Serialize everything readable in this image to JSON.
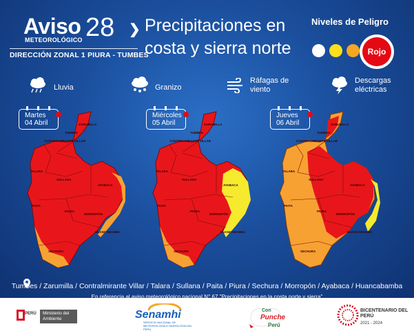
{
  "header": {
    "aviso_word": "Aviso",
    "aviso_number": "28",
    "aviso_sub": "METEOROLÓGICO",
    "zona": "DIRECCIÓN ZONAL 1 PIURA - TUMBES",
    "title_line1": "Precipitaciones en",
    "title_line2": "costa y sierra norte"
  },
  "niveles": {
    "title": "Niveles de Peligro",
    "active_level": "Rojo",
    "colors": [
      "#ffffff",
      "#ffe01b",
      "#f5a623",
      "#e50914"
    ]
  },
  "legend": [
    {
      "icon": "rain-cloud-icon",
      "label": "Lluvia"
    },
    {
      "icon": "hail-cloud-icon",
      "label": "Granizo"
    },
    {
      "icon": "wind-icon",
      "label_line1": "Ráfagas de",
      "label_line2": "viento"
    },
    {
      "icon": "lightning-cloud-icon",
      "label_line1": "Descargas",
      "label_line2": "eléctricas"
    }
  ],
  "days": [
    {
      "weekday": "Martes",
      "date": "04 Abril"
    },
    {
      "weekday": "Miércoles",
      "date": "05 Abril"
    },
    {
      "weekday": "Jueves",
      "date": "06 Abril"
    }
  ],
  "map_labels": {
    "zarumilla": "ZARUMILLA",
    "tumbes": "TUMBES",
    "contralmirante_villar": "CONTRALMIRANTE VILLAR",
    "talara": "TALARA",
    "sullana": "SULLANA",
    "ayabaca": "AYABACA",
    "paita": "PAITA",
    "piura": "PIURA",
    "morropon": "MORROPÓN",
    "huancabamba": "HUANCABAMBA",
    "sechura": "SECHURA"
  },
  "colors": {
    "red": "#e8161b",
    "orange": "#f7a133",
    "yellow": "#f5ea2e"
  },
  "places_line": "Tumbes / Zarumilla / Contralmirante Villar / Talara / Sullana / Paita / Piura / Sechura  / Morropón / Ayabaca / Huancabamba",
  "reference_line": "En referencia al aviso meteorológico nacional N° 67 \"Precipitaciones en la costa norte y sierra\"",
  "footer": {
    "peru_label": "PERÚ",
    "ministerio_label": "Ministerio del Ambiente",
    "senamhi_label": "Senamhi",
    "senamhi_sub": "SERVICIO NACIONAL DE METEOROLOGÍA E HIDROLOGÍA DEL PERÚ",
    "con_label": "Con",
    "puchee_label": "Punche",
    "peru2_label": "Perú",
    "bicentenario_label": "BICENTENARIO DEL PERÚ",
    "bicentenario_years": "2021 - 2024"
  }
}
